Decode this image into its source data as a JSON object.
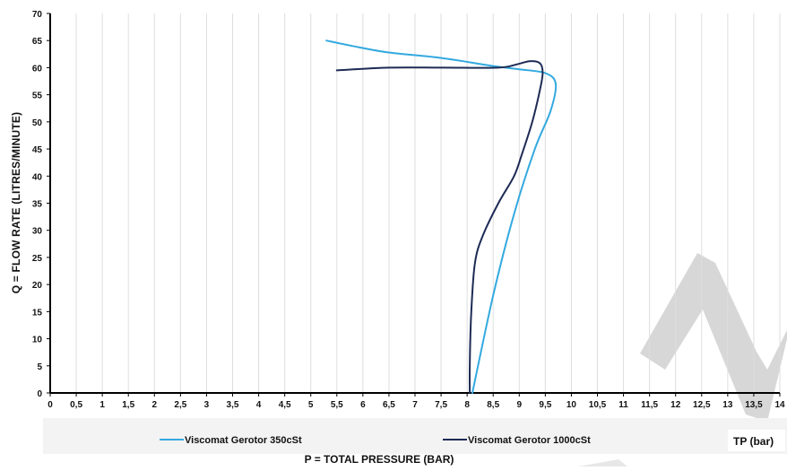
{
  "chart_data": {
    "type": "line",
    "xlabel": "P = TOTAL PRESSURE  (BAR)",
    "ylabel": "Q = FLOW RATE (LITRES/MINUTE)",
    "unit_label": "TP (bar)",
    "xlim": [
      0,
      14
    ],
    "ylim": [
      0,
      70
    ],
    "x_ticks": [
      "0",
      "0,5",
      "1",
      "1,5",
      "2",
      "2,5",
      "3",
      "3,5",
      "4",
      "4,5",
      "5",
      "5,5",
      "6",
      "6,5",
      "7",
      "7,5",
      "8",
      "8,5",
      "9",
      "9,5",
      "10",
      "10,5",
      "11",
      "11,5",
      "12",
      "12,5",
      "13",
      "13,5",
      "14"
    ],
    "y_ticks": [
      "0",
      "5",
      "10",
      "15",
      "20",
      "25",
      "30",
      "35",
      "40",
      "45",
      "50",
      "55",
      "60",
      "65",
      "70"
    ],
    "grid": "vertical",
    "legend_position": "bottom",
    "series": [
      {
        "name": "Viscomat Gerotor 350cSt",
        "color": "#33a9df",
        "points": [
          [
            8.1,
            0
          ],
          [
            8.5,
            18
          ],
          [
            8.9,
            33
          ],
          [
            9.3,
            45
          ],
          [
            9.6,
            52
          ],
          [
            9.7,
            57
          ],
          [
            9.5,
            59
          ],
          [
            9.0,
            59.7
          ],
          [
            8.5,
            60.3
          ],
          [
            7.5,
            61.8
          ],
          [
            6.5,
            62.8
          ],
          [
            5.8,
            64
          ],
          [
            5.3,
            65
          ]
        ]
      },
      {
        "name": "Viscomat Gerotor 1000cSt",
        "color": "#1d2b55",
        "points": [
          [
            8.05,
            0
          ],
          [
            8.05,
            5
          ],
          [
            8.08,
            15
          ],
          [
            8.15,
            24
          ],
          [
            8.3,
            29
          ],
          [
            8.6,
            35
          ],
          [
            8.9,
            40
          ],
          [
            9.05,
            44
          ],
          [
            9.25,
            50
          ],
          [
            9.4,
            56
          ],
          [
            9.45,
            59
          ],
          [
            9.4,
            60.8
          ],
          [
            9.2,
            61.2
          ],
          [
            8.95,
            60.6
          ],
          [
            8.6,
            60
          ],
          [
            7.5,
            60
          ],
          [
            6.5,
            60
          ],
          [
            5.5,
            59.5
          ]
        ]
      }
    ]
  }
}
